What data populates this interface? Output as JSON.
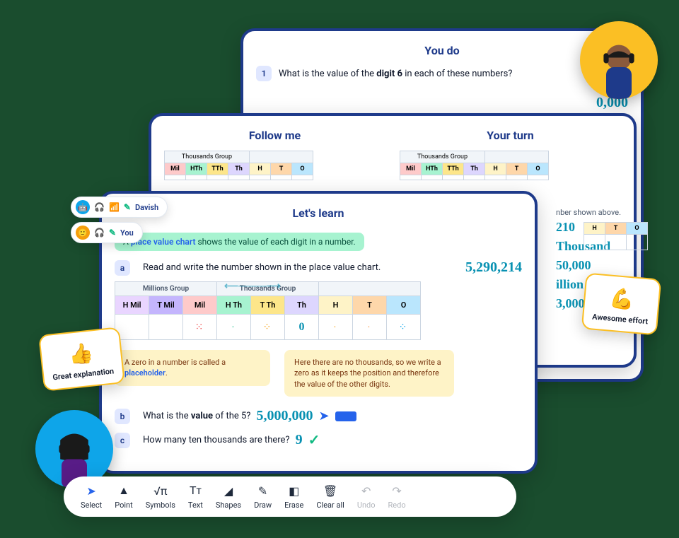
{
  "cards": {
    "back": {
      "title": "You do",
      "q_num": "1",
      "q_text": "What is the value of the digit 6 in each of these numbers?"
    },
    "mid": {
      "left_title": "Follow me",
      "right_title": "Your turn",
      "thousands_label": "Thousands Group",
      "headers": [
        "Mil",
        "HTh",
        "TTh",
        "Th",
        "H",
        "T",
        "O"
      ]
    },
    "front": {
      "title": "Let's learn",
      "intro_pre": "A ",
      "intro_link": "place value chart",
      "intro_post": " shows the value of each digit in a number.",
      "qa_num": "a",
      "qa_text": "Read and write the number shown in the place value chart.",
      "answer_a": "5,290,214",
      "groups": {
        "millions": "Millions Group",
        "thousands": "Thousands Group"
      },
      "headers": [
        "H Mil",
        "T Mil",
        "Mil",
        "H Th",
        "T Th",
        "Th",
        "H",
        "T",
        "O"
      ],
      "note1_pre": "A zero in a number is called a ",
      "note1_link": "placeholder",
      "note1_post": ".",
      "note2": "Here there are no thousands, so we write a zero as it keeps the position and therefore the value of the other digits.",
      "qb_num": "b",
      "qb_text": "What is the value of the 5?",
      "answer_b": "5,000,000",
      "qc_num": "c",
      "qc_text": "How many ten thousands are there?",
      "answer_c": "9",
      "th_zero": "0"
    }
  },
  "side_answers": [
    "0,000",
    "210",
    "Thousand",
    "50,000",
    "illion",
    "3,000,000"
  ],
  "users": {
    "a": "Davish",
    "b": "You"
  },
  "praise": {
    "a": {
      "emoji": "👍",
      "label": "Great explanation"
    },
    "b": {
      "emoji": "💪",
      "label": "Awesome effort"
    }
  },
  "toolbar": [
    {
      "label": "Select",
      "icon": "➤",
      "active": true
    },
    {
      "label": "Point",
      "icon": "▲"
    },
    {
      "label": "Symbols",
      "icon": "√π"
    },
    {
      "label": "Text",
      "icon": "Tᴛ"
    },
    {
      "label": "Shapes",
      "icon": "◢"
    },
    {
      "label": "Draw",
      "icon": "✎"
    },
    {
      "label": "Erase",
      "icon": "◧"
    },
    {
      "label": "Clear all",
      "icon": "🗑"
    },
    {
      "label": "Undo",
      "icon": "↶",
      "dim": true
    },
    {
      "label": "Redo",
      "icon": "↷",
      "dim": true
    }
  ],
  "colors": {
    "pv": {
      "HMil": "#e9d5ff",
      "TMil": "#c4b5fd",
      "Mil": "#fecaca",
      "HTh": "#a7f3d0",
      "TTh": "#fde68a",
      "Th": "#ddd6fe",
      "H": "#fef3c7",
      "T": "#fed7aa",
      "O": "#bae6fd"
    }
  }
}
